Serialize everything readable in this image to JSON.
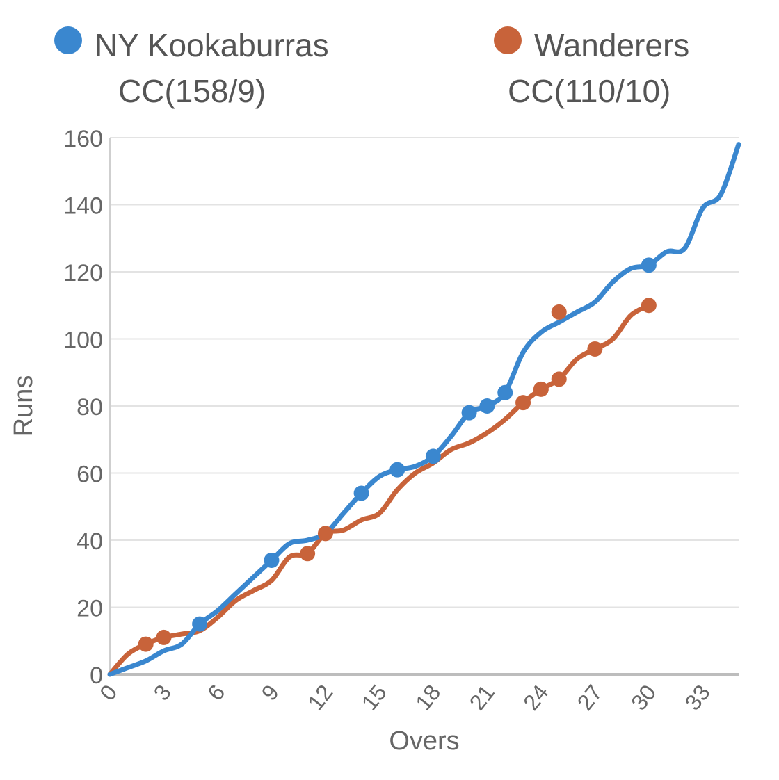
{
  "chart_data": {
    "type": "line",
    "title": "",
    "xlabel": "Overs",
    "ylabel": "Runs",
    "xlim": [
      0,
      35
    ],
    "ylim": [
      0,
      160
    ],
    "x_ticks": [
      "0",
      "3",
      "6",
      "9",
      "12",
      "15",
      "18",
      "21",
      "24",
      "27",
      "30",
      "33"
    ],
    "y_ticks": [
      "0",
      "20",
      "40",
      "60",
      "80",
      "100",
      "120",
      "140",
      "160"
    ],
    "grid": "horizontal",
    "legend_position": "top",
    "series": [
      {
        "name": "NY Kookaburras CC(158/9)",
        "legend_line1": "NY Kookaburras",
        "legend_line2": "CC(158/9)",
        "color": "#3a87cf",
        "x": [
          0,
          1,
          2,
          3,
          4,
          5,
          6,
          7,
          8,
          9,
          10,
          11,
          12,
          13,
          14,
          15,
          16,
          17,
          18,
          19,
          20,
          21,
          22,
          23,
          24,
          25,
          26,
          27,
          28,
          29,
          30,
          31,
          32,
          33,
          34,
          35
        ],
        "y": [
          0,
          2,
          4,
          7,
          9,
          15,
          19,
          24,
          29,
          34,
          39,
          40,
          42,
          48,
          54,
          59,
          61,
          62,
          65,
          71,
          78,
          80,
          84,
          96,
          102,
          105,
          108,
          111,
          117,
          121,
          122,
          126,
          127,
          139,
          143,
          158
        ],
        "markers": [
          [
            5,
            15
          ],
          [
            9,
            34
          ],
          [
            14,
            54
          ],
          [
            16,
            61
          ],
          [
            18,
            65
          ],
          [
            20,
            78
          ],
          [
            21,
            80
          ],
          [
            22,
            84
          ],
          [
            30,
            122
          ]
        ]
      },
      {
        "name": "Wanderers CC(110/10)",
        "legend_line1": "Wanderers",
        "legend_line2": "CC(110/10)",
        "color": "#c8633a",
        "x": [
          0,
          1,
          2,
          3,
          4,
          5,
          6,
          7,
          8,
          9,
          10,
          11,
          12,
          13,
          14,
          15,
          16,
          17,
          18,
          19,
          20,
          21,
          22,
          23,
          24,
          25,
          26,
          27,
          28,
          29,
          30
        ],
        "y": [
          0,
          6,
          9,
          11,
          12,
          13,
          17,
          22,
          25,
          28,
          35,
          36,
          42,
          43,
          46,
          48,
          55,
          60,
          63,
          67,
          69,
          72,
          76,
          81,
          85,
          88,
          94,
          97,
          100,
          107,
          110
        ],
        "markers": [
          [
            2,
            9
          ],
          [
            3,
            11
          ],
          [
            11,
            36
          ],
          [
            12,
            42
          ],
          [
            23,
            81
          ],
          [
            24,
            85
          ],
          [
            25,
            88
          ],
          [
            27,
            97
          ],
          [
            30,
            110
          ]
        ],
        "outlier_points": [
          [
            25,
            108
          ]
        ]
      }
    ]
  }
}
